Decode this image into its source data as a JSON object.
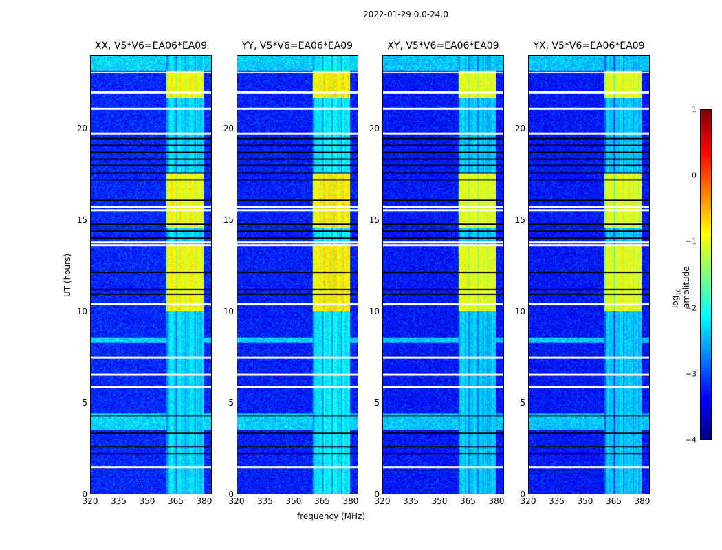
{
  "suptitle": "2022-01-29 0.0-24.0",
  "xlabel": "frequency (MHz)",
  "ylabel": "UT (hours)",
  "colorbar": {
    "label_prefix": "log",
    "label_sub": "10",
    "label_suffix": " amplitude",
    "ticks": [
      "1",
      "0",
      "−1",
      "−2",
      "−3",
      "−4"
    ],
    "tick_values": [
      1,
      0,
      -1,
      -2,
      -3,
      -4
    ],
    "range": [
      -4,
      1
    ],
    "colormap": "jet"
  },
  "chart_data": [
    {
      "type": "heatmap",
      "title": "XX, V5*V6=EA06*EA09",
      "xlim": [
        320,
        384
      ],
      "ylim": [
        0,
        24
      ],
      "xticks": [
        "320",
        "335",
        "350",
        "365",
        "380"
      ],
      "yticks": [
        "0",
        "5",
        "10",
        "15",
        "20"
      ],
      "noise_level": -3.2,
      "band_gain": 0.0
    },
    {
      "type": "heatmap",
      "title": "YY, V5*V6=EA06*EA09",
      "xlim": [
        320,
        384
      ],
      "ylim": [
        0,
        24
      ],
      "xticks": [
        "320",
        "335",
        "350",
        "365",
        "380"
      ],
      "yticks": [
        "0",
        "5",
        "10",
        "15",
        "20"
      ],
      "noise_level": -3.25,
      "band_gain": 0.1
    },
    {
      "type": "heatmap",
      "title": "XY, V5*V6=EA06*EA09",
      "xlim": [
        320,
        384
      ],
      "ylim": [
        0,
        24
      ],
      "xticks": [
        "320",
        "335",
        "350",
        "365",
        "380"
      ],
      "yticks": [
        "0",
        "5",
        "10",
        "15",
        "20"
      ],
      "noise_level": -3.3,
      "band_gain": -0.1
    },
    {
      "type": "heatmap",
      "title": "YX, V5*V6=EA06*EA09",
      "xlim": [
        320,
        384
      ],
      "ylim": [
        0,
        24
      ],
      "xticks": [
        "320",
        "335",
        "350",
        "365",
        "380"
      ],
      "yticks": [
        "0",
        "5",
        "10",
        "15",
        "20"
      ],
      "noise_level": -3.3,
      "band_gain": -0.1
    }
  ],
  "features": {
    "rfi_band_mhz": [
      360,
      380
    ],
    "rfi_strong_hours": [
      [
        10,
        13.6
      ],
      [
        14.6,
        17.6
      ],
      [
        21.7,
        23.2
      ]
    ],
    "bright_rows_hours": [
      [
        3.5,
        4.4
      ],
      [
        8.3,
        8.6
      ],
      [
        23.2,
        24
      ]
    ],
    "white_rows_hours": [
      1.46,
      5.86,
      6.53,
      7.47,
      10.4,
      13.63,
      13.78,
      15.54,
      15.73,
      19.75,
      21.1,
      22.0,
      23.12
    ],
    "black_rows_hours": [
      2.2,
      2.59,
      3.34,
      4.28,
      10.96,
      11.22,
      12.16,
      14.04,
      14.41,
      14.79,
      16.1,
      17.2,
      17.6,
      18.0,
      18.36,
      18.73,
      19.1,
      19.48
    ]
  }
}
